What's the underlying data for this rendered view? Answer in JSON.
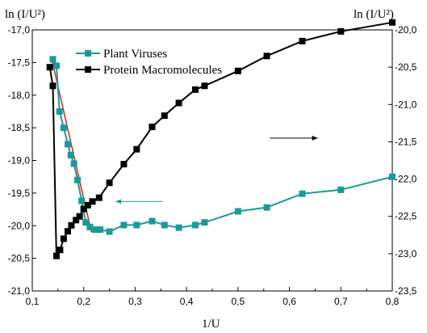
{
  "chart_data": {
    "type": "line",
    "title": "",
    "xlabel": "1/U",
    "ylabel_left": "ln (I/U²)",
    "ylabel_right": "ln (I/U²)",
    "xlim": [
      0.1,
      0.8
    ],
    "ylim_left": [
      -21.0,
      -17.0
    ],
    "ylim_right": [
      -23.5,
      -20.0
    ],
    "x_ticks": [
      "0,1",
      "0,2",
      "0,3",
      "0,4",
      "0,5",
      "0,6",
      "0,7",
      "0,8"
    ],
    "y_left_ticks": [
      "-17,0",
      "-17,5",
      "-18,0",
      "-18,5",
      "-19,0",
      "-19,5",
      "-20,0",
      "-20,5",
      "-21,0"
    ],
    "y_right_ticks": [
      "-20,0",
      "-20,5",
      "-21,0",
      "-21,5",
      "-22,0",
      "-22,5",
      "-23,0",
      "-23,5"
    ],
    "legend_position": "top-left",
    "grid": false,
    "series": [
      {
        "name": "Plant Viruses",
        "axis": "left",
        "color": "#1a9a96",
        "x": [
          0.14,
          0.147,
          0.153,
          0.161,
          0.169,
          0.175,
          0.181,
          0.188,
          0.196,
          0.204,
          0.212,
          0.222,
          0.232,
          0.25,
          0.278,
          0.303,
          0.333,
          0.357,
          0.385,
          0.417,
          0.435,
          0.5,
          0.556,
          0.625,
          0.7,
          0.8
        ],
        "y": [
          -17.45,
          -17.55,
          -18.25,
          -18.5,
          -18.75,
          -18.92,
          -19.05,
          -19.3,
          -19.62,
          -19.95,
          -20.02,
          -20.06,
          -20.06,
          -20.09,
          -19.99,
          -19.99,
          -19.93,
          -19.99,
          -20.03,
          -19.99,
          -19.95,
          -19.78,
          -19.72,
          -19.51,
          -19.45,
          -19.25
        ]
      },
      {
        "name": "Protein Macromolecules",
        "axis": "right",
        "color": "#000000",
        "x": [
          0.134,
          0.14,
          0.147,
          0.154,
          0.161,
          0.169,
          0.176,
          0.185,
          0.192,
          0.2,
          0.208,
          0.217,
          0.23,
          0.25,
          0.278,
          0.303,
          0.333,
          0.357,
          0.385,
          0.417,
          0.435,
          0.5,
          0.556,
          0.625,
          0.7,
          0.8
        ],
        "y": [
          -20.5,
          -20.75,
          -23.03,
          -22.95,
          -22.8,
          -22.7,
          -22.62,
          -22.55,
          -22.5,
          -22.4,
          -22.35,
          -22.3,
          -22.25,
          -22.05,
          -21.8,
          -21.6,
          -21.3,
          -21.15,
          -20.98,
          -20.8,
          -20.75,
          -20.55,
          -20.35,
          -20.15,
          -20.02,
          -19.9
        ]
      }
    ],
    "fit_line": {
      "color": "#e02020",
      "axis": "left",
      "x": [
        0.137,
        0.215
      ],
      "y": [
        -17.42,
        -20.1
      ]
    },
    "annotations": [
      {
        "type": "arrow",
        "direction": "right",
        "axis": "right",
        "x1": 0.562,
        "x2": 0.655,
        "y": -21.45
      },
      {
        "type": "arrow",
        "direction": "left",
        "axis": "right",
        "x1": 0.353,
        "x2": 0.262,
        "y": -22.3
      }
    ]
  }
}
